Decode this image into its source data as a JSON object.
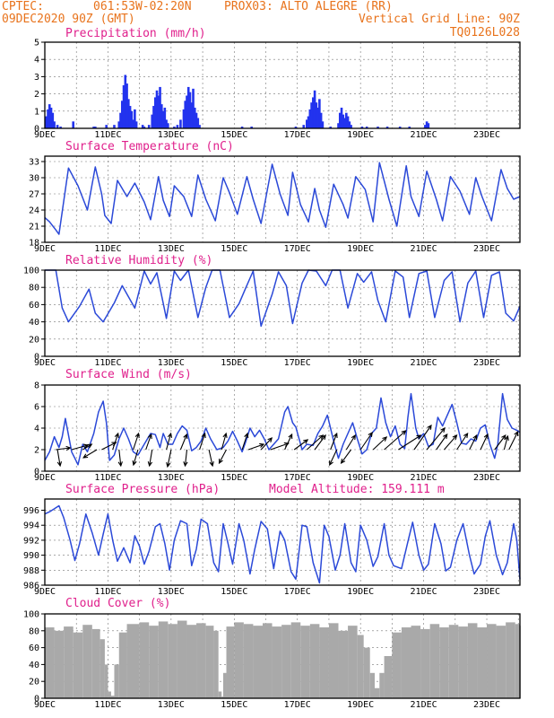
{
  "header": {
    "source": "CPTEC:",
    "coords": "061:53W-02:20N",
    "station": "PROX03: ALTO ALEGRE (RR)",
    "init_time": "09DEC2020 90Z (GMT)",
    "grid_note": "Vertical Grid Line: 90Z",
    "model_code": "TQ0126L028"
  },
  "x_axis": {
    "day_start": 9,
    "day_end": 24.05,
    "labels": [
      {
        "day": 9,
        "label": "9DEC"
      },
      {
        "day": 11,
        "label": "11DEC"
      },
      {
        "day": 13,
        "label": "13DEC"
      },
      {
        "day": 15,
        "label": "15DEC"
      },
      {
        "day": 17,
        "label": "17DEC"
      },
      {
        "day": 19,
        "label": "19DEC"
      },
      {
        "day": 21,
        "label": "21DEC"
      },
      {
        "day": 23,
        "label": "23DEC"
      }
    ]
  },
  "colors": {
    "line": "#2b49d8",
    "bars": "#2233ee",
    "cloud": "#a9a9a9",
    "title": "#e0208c",
    "header": "#e8731c"
  },
  "chart_data": [
    {
      "id": "precip",
      "type": "bar",
      "title": "Precipitation (mm/h)",
      "ylim": [
        0,
        5
      ],
      "yticks": [
        0,
        1,
        2,
        3,
        4,
        5
      ],
      "x": [
        9.05,
        9.1,
        9.15,
        9.2,
        9.25,
        9.3,
        9.4,
        9.5,
        9.9,
        10.55,
        10.6,
        10.95,
        11.2,
        11.35,
        11.4,
        11.45,
        11.5,
        11.55,
        11.6,
        11.65,
        11.7,
        11.75,
        11.8,
        11.85,
        11.9,
        12.1,
        12.15,
        12.3,
        12.4,
        12.45,
        12.5,
        12.55,
        12.6,
        12.65,
        12.7,
        12.75,
        12.8,
        12.85,
        12.9,
        13.1,
        13.2,
        13.3,
        13.4,
        13.45,
        13.5,
        13.55,
        13.6,
        13.65,
        13.7,
        13.75,
        13.8,
        13.85,
        13.9,
        15.25,
        15.55,
        16.95,
        17.2,
        17.3,
        17.35,
        17.4,
        17.45,
        17.5,
        17.55,
        17.6,
        17.65,
        17.7,
        17.75,
        17.8,
        18.05,
        18.3,
        18.35,
        18.4,
        18.45,
        18.5,
        18.55,
        18.6,
        18.65,
        18.7,
        19.05,
        19.2,
        19.55,
        19.85,
        20.25,
        20.55,
        21.05,
        21.1,
        21.15
      ],
      "values": [
        0.7,
        1.1,
        1.4,
        1.2,
        0.9,
        0.4,
        0.2,
        0.1,
        0.4,
        0.1,
        0.1,
        0.2,
        0.2,
        0.4,
        0.9,
        1.6,
        2.5,
        3.1,
        2.6,
        1.7,
        1.3,
        1.0,
        0.5,
        1.1,
        0.4,
        0.2,
        0.1,
        0.2,
        0.8,
        1.3,
        1.8,
        2.2,
        1.9,
        2.4,
        1.4,
        1.0,
        1.2,
        0.5,
        0.3,
        0.1,
        0.2,
        0.5,
        1.1,
        1.6,
        1.9,
        2.4,
        2.1,
        1.5,
        2.3,
        1.2,
        0.9,
        0.6,
        0.2,
        0.1,
        0.1,
        0.1,
        0.2,
        0.5,
        0.7,
        1.1,
        1.5,
        1.8,
        2.2,
        1.5,
        1.2,
        1.7,
        0.9,
        0.4,
        0.1,
        0.3,
        0.9,
        1.2,
        0.8,
        0.6,
        0.9,
        0.7,
        0.4,
        0.2,
        0.1,
        0.1,
        0.1,
        0.1,
        0.1,
        0.1,
        0.2,
        0.4,
        0.3
      ],
      "xlabel": "",
      "ylabel": ""
    },
    {
      "id": "temp",
      "type": "line",
      "title": "Surface Temperature (nC)",
      "ylim": [
        18,
        34
      ],
      "yticks": [
        18,
        21,
        24,
        27,
        30,
        33
      ],
      "x": [
        9.0,
        9.15,
        9.35,
        9.45,
        9.75,
        10.05,
        10.35,
        10.6,
        10.8,
        10.9,
        11.1,
        11.3,
        11.6,
        11.85,
        12.15,
        12.35,
        12.6,
        12.75,
        12.95,
        13.1,
        13.4,
        13.65,
        13.85,
        14.1,
        14.4,
        14.65,
        14.85,
        15.1,
        15.4,
        15.6,
        15.85,
        16.2,
        16.45,
        16.7,
        16.85,
        17.1,
        17.35,
        17.55,
        17.7,
        17.9,
        18.15,
        18.45,
        18.6,
        18.85,
        19.15,
        19.4,
        19.6,
        19.9,
        20.15,
        20.45,
        20.6,
        20.85,
        21.1,
        21.4,
        21.6,
        21.85,
        22.15,
        22.45,
        22.65,
        22.85,
        23.15,
        23.45,
        23.65,
        23.85,
        24.05
      ],
      "values": [
        22.6,
        21.8,
        20.3,
        19.5,
        31.8,
        28.5,
        24.0,
        32.0,
        27.0,
        23.0,
        21.5,
        29.5,
        26.5,
        29.0,
        25.5,
        22.2,
        30.2,
        25.8,
        22.8,
        28.5,
        26.5,
        22.8,
        30.5,
        26.0,
        22.0,
        30.0,
        27.2,
        23.2,
        30.2,
        26.0,
        21.5,
        32.5,
        27.0,
        23.0,
        31.0,
        25.0,
        21.8,
        28.0,
        24.0,
        20.8,
        28.8,
        25.0,
        22.5,
        30.2,
        27.8,
        21.8,
        32.8,
        26.0,
        21.0,
        32.2,
        26.5,
        22.8,
        31.2,
        26.0,
        22.0,
        30.2,
        27.5,
        23.2,
        30.0,
        26.5,
        22.0,
        31.5,
        28.0,
        26.0,
        26.5
      ],
      "xlabel": "",
      "ylabel": ""
    },
    {
      "id": "rh",
      "type": "line",
      "title": "Relative Humidity (%)",
      "ylim": [
        0,
        100
      ],
      "yticks": [
        0,
        20,
        40,
        60,
        80,
        100
      ],
      "x": [
        9.0,
        9.35,
        9.55,
        9.75,
        10.1,
        10.4,
        10.6,
        10.85,
        11.2,
        11.45,
        11.85,
        12.15,
        12.35,
        12.55,
        12.85,
        13.1,
        13.3,
        13.55,
        13.85,
        14.1,
        14.3,
        14.55,
        14.85,
        15.15,
        15.35,
        15.6,
        15.85,
        16.2,
        16.4,
        16.65,
        16.85,
        17.15,
        17.35,
        17.6,
        17.9,
        18.1,
        18.35,
        18.6,
        18.9,
        19.1,
        19.35,
        19.55,
        19.8,
        20.1,
        20.35,
        20.55,
        20.85,
        21.1,
        21.35,
        21.65,
        21.9,
        22.15,
        22.4,
        22.65,
        22.9,
        23.15,
        23.4,
        23.6,
        23.85,
        24.05
      ],
      "values": [
        100,
        100,
        56,
        40,
        58,
        78,
        50,
        40,
        62,
        82,
        56,
        99,
        84,
        97,
        44,
        99,
        88,
        100,
        45,
        80,
        100,
        100,
        45,
        61,
        78,
        99,
        35,
        72,
        98,
        82,
        38,
        85,
        100,
        99,
        82,
        100,
        100,
        56,
        96,
        86,
        98,
        65,
        40,
        99,
        92,
        45,
        96,
        99,
        45,
        88,
        98,
        40,
        85,
        99,
        45,
        94,
        98,
        50,
        41,
        58
      ],
      "xlabel": "",
      "ylabel": ""
    },
    {
      "id": "wind",
      "type": "line",
      "title": "Surface Wind (m/s)",
      "ylim": [
        0,
        8
      ],
      "yticks": [
        0,
        2,
        4,
        6,
        8
      ],
      "x": [
        9.0,
        9.15,
        9.3,
        9.45,
        9.55,
        9.65,
        9.85,
        9.95,
        10.05,
        10.2,
        10.35,
        10.55,
        10.7,
        10.85,
        10.95,
        11.05,
        11.2,
        11.35,
        11.5,
        11.65,
        11.8,
        11.95,
        12.15,
        12.35,
        12.5,
        12.65,
        12.75,
        12.9,
        13.05,
        13.2,
        13.35,
        13.5,
        13.65,
        13.8,
        13.95,
        14.1,
        14.25,
        14.45,
        14.65,
        14.8,
        14.95,
        15.1,
        15.25,
        15.35,
        15.5,
        15.65,
        15.8,
        15.95,
        16.1,
        16.25,
        16.4,
        16.6,
        16.7,
        16.85,
        16.95,
        17.15,
        17.3,
        17.5,
        17.65,
        17.8,
        17.95,
        18.15,
        18.3,
        18.45,
        18.6,
        18.75,
        18.9,
        19.05,
        19.2,
        19.35,
        19.5,
        19.65,
        19.8,
        19.95,
        20.1,
        20.25,
        20.4,
        20.5,
        20.6,
        20.75,
        20.85,
        21.0,
        21.15,
        21.3,
        21.45,
        21.6,
        21.75,
        21.9,
        22.05,
        22.2,
        22.35,
        22.5,
        22.65,
        22.8,
        22.95,
        23.1,
        23.25,
        23.35,
        23.5,
        23.65,
        23.8,
        23.95,
        24.05
      ],
      "values": [
        1.0,
        1.8,
        3.2,
        2.2,
        3.2,
        4.9,
        1.8,
        1.2,
        0.6,
        2.5,
        1.8,
        3.5,
        5.5,
        6.5,
        4.5,
        1.0,
        1.5,
        3.0,
        4.0,
        3.0,
        1.8,
        1.5,
        2.5,
        3.5,
        3.4,
        2.2,
        3.5,
        2.5,
        2.5,
        3.5,
        4.2,
        3.8,
        1.9,
        2.2,
        2.8,
        4.0,
        3.0,
        2.0,
        2.2,
        2.8,
        3.7,
        2.8,
        1.8,
        2.6,
        4.0,
        3.2,
        3.8,
        3.0,
        2.0,
        2.5,
        3.0,
        5.5,
        6.0,
        4.5,
        4.1,
        2.0,
        2.5,
        2.4,
        3.5,
        4.2,
        5.2,
        2.8,
        1.2,
        2.5,
        3.5,
        4.5,
        3.0,
        1.6,
        2.0,
        3.5,
        4.0,
        6.8,
        4.5,
        3.2,
        4.2,
        2.5,
        2.1,
        5.0,
        7.2,
        4.0,
        3.0,
        3.5,
        2.3,
        2.5,
        5.0,
        4.2,
        5.2,
        6.2,
        4.5,
        2.6,
        2.5,
        3.0,
        2.8,
        4.0,
        4.3,
        2.5,
        1.2,
        2.5,
        7.2,
        4.8,
        4.0,
        3.8,
        3.6
      ],
      "arrows": [
        {
          "day": 9.35,
          "u": 1.6,
          "v": 0.2
        },
        {
          "day": 9.4,
          "u": 0.3,
          "v": -1.8
        },
        {
          "day": 9.85,
          "u": 1.8,
          "v": 0.5
        },
        {
          "day": 10.2,
          "u": 1.0,
          "v": 0.6
        },
        {
          "day": 10.65,
          "u": -1.5,
          "v": -0.9
        },
        {
          "day": 10.8,
          "u": 1.6,
          "v": 0.8
        },
        {
          "day": 11.15,
          "u": 0.6,
          "v": 1.8
        },
        {
          "day": 11.35,
          "u": 0.2,
          "v": -1.8
        },
        {
          "day": 11.8,
          "u": 0.6,
          "v": 1.8
        },
        {
          "day": 11.95,
          "u": -0.5,
          "v": -1.7
        },
        {
          "day": 12.2,
          "u": 0.6,
          "v": 1.7
        },
        {
          "day": 12.4,
          "u": -0.3,
          "v": -1.8
        },
        {
          "day": 12.85,
          "u": 0.5,
          "v": 1.8
        },
        {
          "day": 13.0,
          "u": -0.4,
          "v": -1.9
        },
        {
          "day": 13.3,
          "u": 0.7,
          "v": 1.7
        },
        {
          "day": 13.5,
          "u": -0.2,
          "v": -1.8
        },
        {
          "day": 13.9,
          "u": 0.6,
          "v": 1.8
        },
        {
          "day": 14.2,
          "u": 0.4,
          "v": -1.8
        },
        {
          "day": 14.6,
          "u": 0.5,
          "v": 1.8
        },
        {
          "day": 14.75,
          "u": -0.8,
          "v": -1.5
        },
        {
          "day": 15.25,
          "u": 0.6,
          "v": 1.8
        },
        {
          "day": 15.45,
          "u": 1.7,
          "v": 0.6
        },
        {
          "day": 15.85,
          "u": 1.2,
          "v": 1.3
        },
        {
          "day": 16.15,
          "u": 2.0,
          "v": 0.7
        },
        {
          "day": 16.6,
          "u": 0.8,
          "v": 1.7
        },
        {
          "day": 16.9,
          "u": 1.5,
          "v": 1.1
        },
        {
          "day": 17.3,
          "u": 1.8,
          "v": 1.6
        },
        {
          "day": 17.55,
          "u": 1.2,
          "v": 1.6
        },
        {
          "day": 18.05,
          "u": 0.7,
          "v": 1.8
        },
        {
          "day": 18.25,
          "u": -0.8,
          "v": -1.7
        },
        {
          "day": 18.55,
          "u": 1.0,
          "v": 1.6
        },
        {
          "day": 18.7,
          "u": -1.1,
          "v": -1.5
        },
        {
          "day": 19.0,
          "u": 1.3,
          "v": 1.9
        },
        {
          "day": 19.4,
          "u": 1.5,
          "v": 1.4
        },
        {
          "day": 19.75,
          "u": 2.4,
          "v": 2.1
        },
        {
          "day": 20.2,
          "u": 2.5,
          "v": 1.6
        },
        {
          "day": 20.7,
          "u": 1.9,
          "v": 2.7
        },
        {
          "day": 21.1,
          "u": 2.0,
          "v": 2.4
        },
        {
          "day": 21.4,
          "u": 1.2,
          "v": 1.7
        },
        {
          "day": 21.65,
          "u": 1.4,
          "v": 1.6
        },
        {
          "day": 22.05,
          "u": 1.2,
          "v": 1.8
        },
        {
          "day": 22.45,
          "u": 0.8,
          "v": 1.6
        },
        {
          "day": 22.8,
          "u": 0.8,
          "v": 1.7
        },
        {
          "day": 23.25,
          "u": 1.2,
          "v": 1.6
        },
        {
          "day": 23.55,
          "u": 0.4,
          "v": 1.5
        },
        {
          "day": 23.7,
          "u": 1.0,
          "v": 2.0
        }
      ],
      "xlabel": "",
      "ylabel": ""
    },
    {
      "id": "pres",
      "type": "line",
      "title": "Surface Pressure (hPa)",
      "annotation": "Model Altitude: 159.111  m",
      "ylim": [
        986,
        997.5
      ],
      "yticks": [
        986,
        988,
        990,
        992,
        994,
        996
      ],
      "x": [
        9.0,
        9.15,
        9.3,
        9.45,
        9.6,
        9.8,
        9.95,
        10.1,
        10.3,
        10.5,
        10.7,
        10.85,
        11.0,
        11.15,
        11.3,
        11.5,
        11.7,
        11.85,
        12.0,
        12.15,
        12.3,
        12.5,
        12.65,
        12.8,
        12.95,
        13.1,
        13.3,
        13.5,
        13.65,
        13.8,
        13.95,
        14.15,
        14.35,
        14.5,
        14.65,
        14.8,
        14.95,
        15.15,
        15.3,
        15.5,
        15.65,
        15.85,
        16.05,
        16.25,
        16.45,
        16.6,
        16.8,
        16.95,
        17.15,
        17.3,
        17.5,
        17.7,
        17.85,
        18.0,
        18.2,
        18.35,
        18.5,
        18.7,
        18.85,
        19.0,
        19.2,
        19.4,
        19.55,
        19.75,
        19.9,
        20.05,
        20.3,
        20.5,
        20.65,
        20.85,
        21.0,
        21.15,
        21.35,
        21.55,
        21.7,
        21.85,
        22.05,
        22.25,
        22.45,
        22.6,
        22.8,
        22.95,
        23.1,
        23.3,
        23.5,
        23.65,
        23.85,
        23.95,
        24.05
      ],
      "values": [
        995.5,
        995.8,
        996.2,
        996.6,
        995.0,
        992.0,
        989.3,
        991.5,
        995.5,
        993.0,
        990.0,
        992.8,
        995.5,
        992.0,
        989.2,
        991.0,
        989.0,
        992.6,
        991.2,
        988.8,
        990.5,
        993.8,
        994.2,
        991.6,
        988.0,
        992.0,
        994.6,
        994.2,
        988.6,
        990.8,
        994.8,
        994.2,
        989.0,
        987.8,
        994.2,
        991.6,
        988.8,
        994.2,
        992.0,
        987.5,
        990.8,
        994.5,
        993.5,
        988.2,
        993.2,
        992.0,
        987.8,
        986.8,
        994.0,
        993.8,
        989.0,
        986.3,
        994.0,
        992.5,
        988.0,
        990.0,
        994.2,
        989.0,
        987.8,
        994.0,
        992.0,
        988.5,
        989.8,
        994.2,
        990.0,
        988.6,
        988.2,
        991.8,
        994.4,
        990.0,
        988.0,
        988.8,
        994.2,
        991.5,
        987.9,
        988.4,
        992.0,
        994.2,
        990.0,
        987.5,
        988.8,
        992.5,
        994.6,
        990.0,
        987.4,
        989.0,
        994.2,
        992.0,
        986.8
      ],
      "xlabel": "",
      "ylabel": ""
    },
    {
      "id": "cloud",
      "type": "area",
      "title": "Cloud Cover (%)",
      "ylim": [
        0,
        100
      ],
      "yticks": [
        0,
        20,
        40,
        60,
        80,
        100
      ],
      "x": [
        9.0,
        9.3,
        9.6,
        9.9,
        10.2,
        10.5,
        10.75,
        10.9,
        11.0,
        11.1,
        11.2,
        11.35,
        11.6,
        12.0,
        12.3,
        12.6,
        12.9,
        13.2,
        13.5,
        13.8,
        14.1,
        14.35,
        14.5,
        14.6,
        14.65,
        14.75,
        15.0,
        15.3,
        15.6,
        15.9,
        16.2,
        16.5,
        16.8,
        17.1,
        17.4,
        17.7,
        18.0,
        18.3,
        18.6,
        18.9,
        19.1,
        19.3,
        19.45,
        19.6,
        19.75,
        20.0,
        20.3,
        20.6,
        20.9,
        21.2,
        21.5,
        21.8,
        22.1,
        22.4,
        22.7,
        23.0,
        23.3,
        23.6,
        23.9,
        24.05
      ],
      "values": [
        84,
        80,
        85,
        78,
        87,
        82,
        70,
        40,
        8,
        3,
        40,
        78,
        88,
        90,
        86,
        91,
        88,
        92,
        87,
        89,
        86,
        80,
        8,
        2,
        30,
        85,
        90,
        88,
        86,
        89,
        85,
        87,
        90,
        86,
        88,
        84,
        89,
        80,
        86,
        75,
        60,
        30,
        12,
        30,
        50,
        78,
        84,
        86,
        82,
        88,
        84,
        87,
        85,
        89,
        84,
        88,
        86,
        90,
        88,
        86
      ],
      "xlabel": "",
      "ylabel": ""
    }
  ]
}
